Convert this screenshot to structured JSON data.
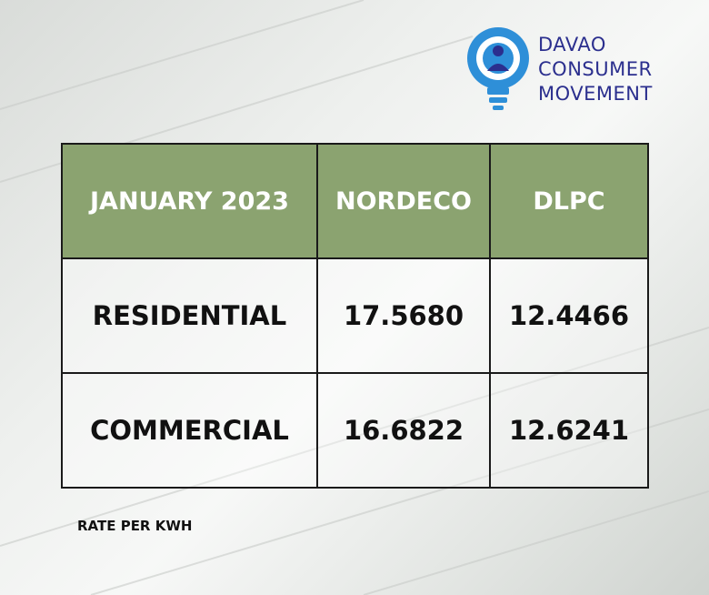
{
  "logo": {
    "lines": [
      "DAVAO",
      "CONSUMER",
      "MOVEMENT"
    ]
  },
  "table": {
    "header": [
      "JANUARY 2023",
      "NORDECO",
      "DLPC"
    ],
    "rows": [
      [
        "RESIDENTIAL",
        "17.5680",
        "12.4466"
      ],
      [
        "COMMERCIAL",
        "16.6822",
        "12.6241"
      ]
    ]
  },
  "footer": {
    "note": "RATE PER KWH"
  }
}
